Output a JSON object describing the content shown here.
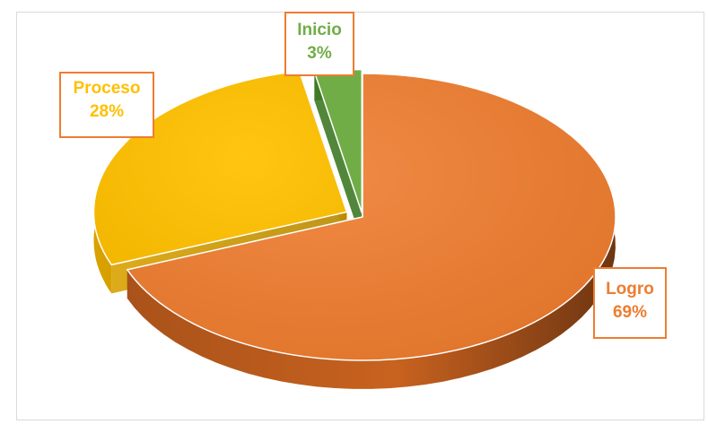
{
  "chart_data": {
    "type": "pie",
    "title": "",
    "categories": [
      "Logro",
      "Proceso",
      "Inicio"
    ],
    "values": [
      69,
      28,
      3
    ],
    "value_labels": [
      "69%",
      "28%",
      "3%"
    ],
    "colors": [
      "#ed7d31",
      "#ffc000",
      "#70ad47"
    ],
    "label_text_colors": [
      "#ed7d31",
      "#ffc000",
      "#70ad47"
    ],
    "label_border_color": "#ed7d31",
    "style": "3D exploded",
    "legend": "none"
  }
}
